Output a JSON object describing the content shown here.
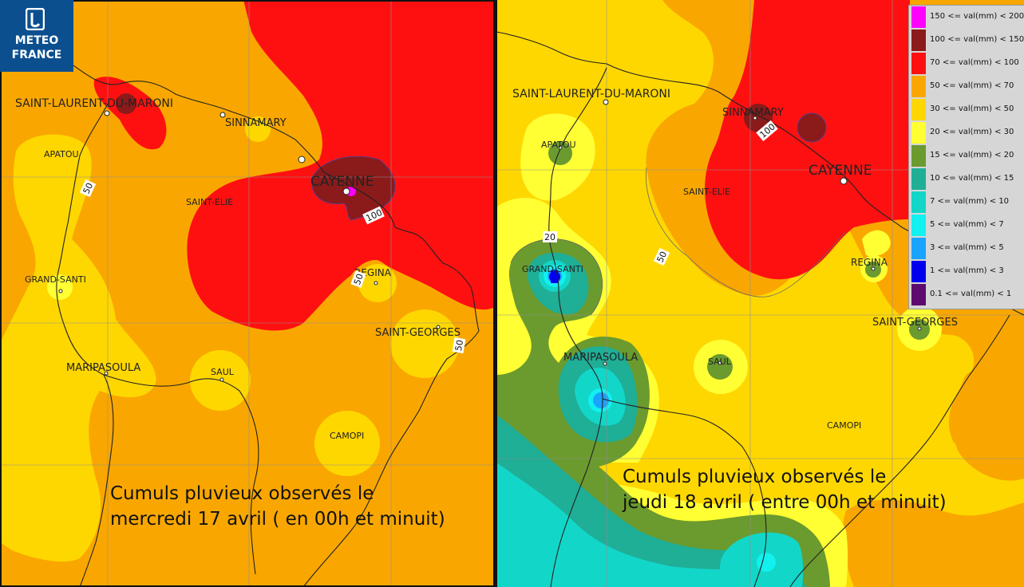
{
  "logo": {
    "line1": "METEO",
    "line2": "FRANCE"
  },
  "left_map": {
    "caption_line1": "Cumuls pluvieux observés le",
    "caption_line2": "mercredi 17 avril ( en 00h et  minuit)",
    "towns": {
      "saint_laurent": "SAINT-LAURENT-DU-MARONI",
      "sinnamary": "SINNAMARY",
      "apatou": "APATOU",
      "cayenne": "CAYENNE",
      "saint_elie": "SAINT-ELIE",
      "regina": "REGINA",
      "grand_santi": "GRAND-SANTI",
      "saint_georges": "SAINT-GEORGES",
      "maripasoula": "MARIPASOULA",
      "saul": "SAUL",
      "camopi": "CAMOPI"
    },
    "contour_labels": {
      "c50a": "50",
      "c100": "100",
      "c50b": "50",
      "c50c": "50"
    }
  },
  "right_map": {
    "caption_line1": "Cumuls pluvieux observés le",
    "caption_line2": "jeudi 18 avril ( entre 00h et minuit)",
    "towns": {
      "saint_laurent": "SAINT-LAURENT-DU-MARONI",
      "sinnamary": "SINNAMARY",
      "apatou": "APATOU",
      "cayenne": "CAYENNE",
      "saint_elie": "SAINT-ELIE",
      "regina": "REGINA",
      "grand_santi": "GRAND-SANTI",
      "saint_georges": "SAINT-GEORGES",
      "maripasoula": "MARIPASOULA",
      "saul": "SAUL",
      "camopi": "CAMOPI"
    },
    "contour_labels": {
      "c100": "100",
      "c20": "20",
      "c50": "50"
    }
  },
  "legend": [
    {
      "label": "150 <= val(mm) < 200",
      "color": "#ff00ff"
    },
    {
      "label": "100 <= val(mm) < 150",
      "color": "#8b1a1a"
    },
    {
      "label": "70 <= val(mm) < 100",
      "color": "#ff1010"
    },
    {
      "label": "50 <= val(mm) < 70",
      "color": "#f9a700"
    },
    {
      "label": "30 <= val(mm) < 50",
      "color": "#ffd700"
    },
    {
      "label": "20 <= val(mm) < 30",
      "color": "#ffff33"
    },
    {
      "label": "15 <= val(mm) < 20",
      "color": "#6b9a2e"
    },
    {
      "label": "10 <= val(mm) < 15",
      "color": "#1fae96"
    },
    {
      "label": "7 <= val(mm) < 10",
      "color": "#12d6c8"
    },
    {
      "label": "5 <= val(mm) < 7",
      "color": "#12f0f0"
    },
    {
      "label": "3 <= val(mm) < 5",
      "color": "#1aa3ff"
    },
    {
      "label": "1 <= val(mm) < 3",
      "color": "#0000ee"
    },
    {
      "label": "0.1 <= val(mm) < 1",
      "color": "#5e0a6e"
    }
  ]
}
